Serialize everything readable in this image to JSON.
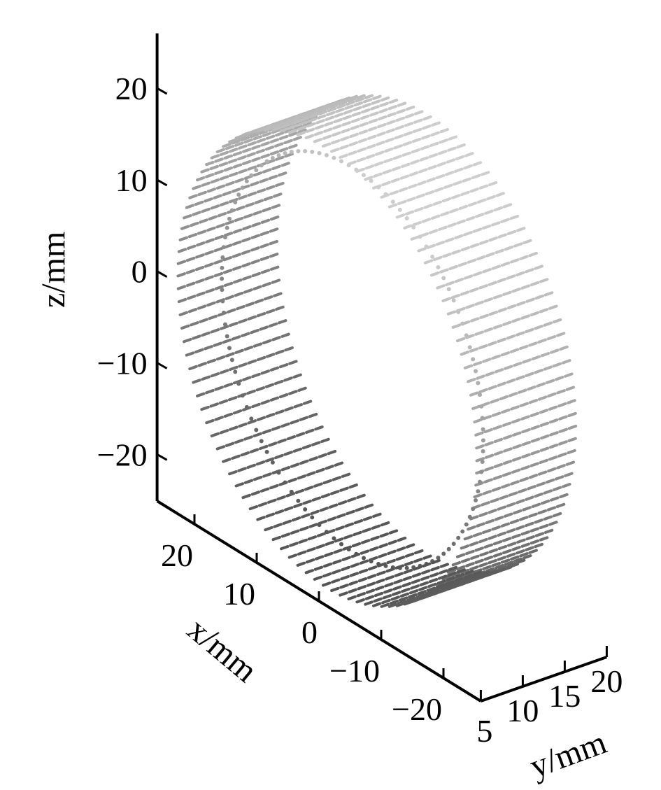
{
  "chart_data": {
    "type": "scatter3d",
    "title": "",
    "xlabel": "x/mm",
    "ylabel": "y/mm",
    "zlabel": "z/mm",
    "xlim": [
      -26,
      26
    ],
    "ylim": [
      5,
      20
    ],
    "zlim": [
      -25,
      26
    ],
    "xticks": [
      20,
      10,
      0,
      -10,
      -20
    ],
    "xtick_labels": [
      "20",
      "10",
      "0",
      "−10",
      "−20"
    ],
    "yticks": [
      5,
      10,
      15,
      20
    ],
    "ytick_labels": [
      "5",
      "10",
      "15",
      "20"
    ],
    "zticks": [
      20,
      10,
      0,
      -10,
      -20
    ],
    "ztick_labels": [
      "20",
      "10",
      "0",
      "−10",
      "−20"
    ],
    "grid": false,
    "colormap": "grayscale",
    "point_cloud": {
      "shape": "ring",
      "plane": "x-z",
      "center": {
        "x": 0,
        "y": 12,
        "z": 0
      },
      "radius": 24,
      "y_extent": [
        6,
        18
      ]
    }
  }
}
